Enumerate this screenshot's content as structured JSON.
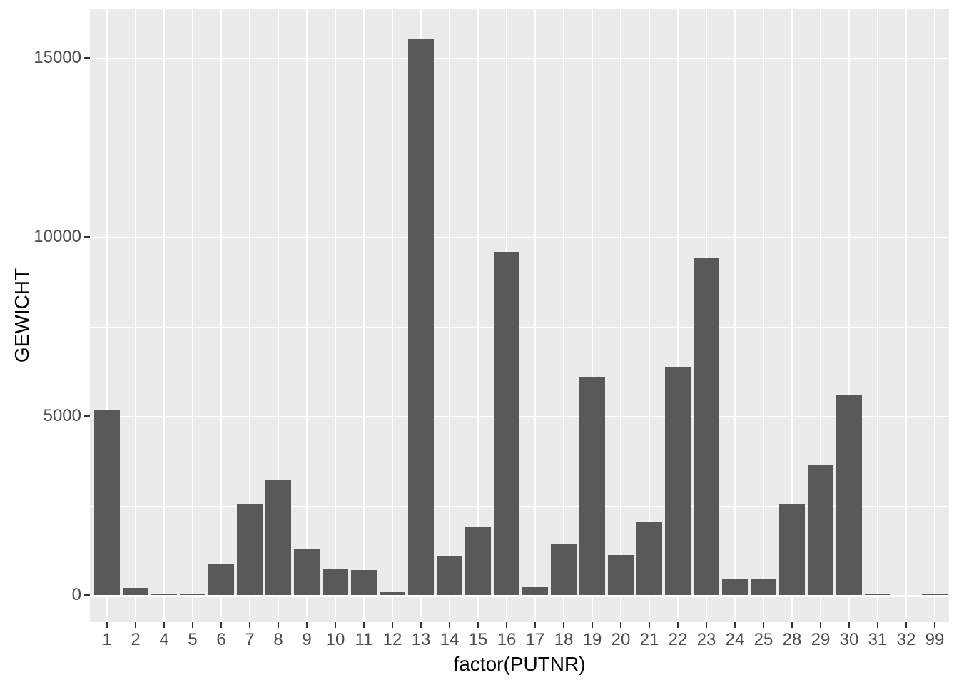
{
  "figure": {
    "background_color": "#FFFFFF",
    "panel_color": "#EBEBEB",
    "grid_color": "#FFFFFF",
    "bar_color": "#595959",
    "tick_mark_color": "#333333",
    "tick_label_color": "#4D4D4D",
    "axis_title_color": "#000000"
  },
  "chart_data": {
    "type": "bar",
    "title": "",
    "xlabel": "factor(PUTNR)",
    "ylabel": "GEWICHT",
    "categories": [
      "1",
      "2",
      "4",
      "5",
      "6",
      "7",
      "8",
      "9",
      "10",
      "11",
      "12",
      "13",
      "14",
      "15",
      "16",
      "17",
      "18",
      "19",
      "20",
      "21",
      "22",
      "23",
      "24",
      "25",
      "28",
      "29",
      "30",
      "31",
      "32",
      "99"
    ],
    "values": [
      5150,
      200,
      40,
      40,
      860,
      2550,
      3200,
      1270,
      720,
      700,
      100,
      15530,
      1100,
      1890,
      9580,
      220,
      1410,
      6080,
      1110,
      2030,
      6380,
      9420,
      440,
      440,
      2540,
      3640,
      5600,
      40,
      0,
      40
    ],
    "y_major_ticks": [
      0,
      5000,
      10000,
      15000
    ],
    "y_major_tick_labels": [
      "0",
      "5000",
      "10000",
      "15000"
    ],
    "y_minor_ticks": [
      2500,
      7500,
      12500
    ],
    "ylim": [
      -780,
      16330
    ],
    "grid": "white major+minor horizontal, white major vertical per category",
    "legend": false
  }
}
